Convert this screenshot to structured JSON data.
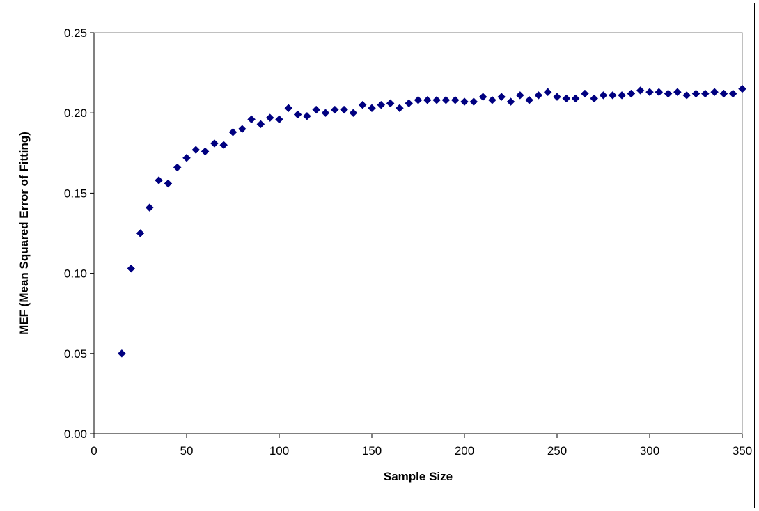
{
  "chart_data": {
    "type": "scatter",
    "title": "",
    "xlabel": "Sample Size",
    "ylabel": "MEF (Mean Squared Error of Fitting)",
    "xlim": [
      0,
      350
    ],
    "ylim": [
      0,
      0.25
    ],
    "x_ticks": [
      "0",
      "50",
      "100",
      "150",
      "200",
      "250",
      "300",
      "350"
    ],
    "y_ticks": [
      "0.00",
      "0.05",
      "0.10",
      "0.15",
      "0.20",
      "0.25"
    ],
    "grid": false,
    "legend": "none",
    "marker": "diamond",
    "marker_color": "#000080",
    "series": [
      {
        "x": [
          15,
          20,
          25,
          30,
          35,
          40,
          45,
          50,
          55,
          60,
          65,
          70,
          75,
          80,
          85,
          90,
          95,
          100,
          105,
          110,
          115,
          120,
          125,
          130,
          135,
          140,
          145,
          150,
          155,
          160,
          165,
          170,
          175,
          180,
          185,
          190,
          195,
          200,
          205,
          210,
          215,
          220,
          225,
          230,
          235,
          240,
          245,
          250,
          255,
          260,
          265,
          270,
          275,
          280,
          285,
          290,
          295,
          300,
          305,
          310,
          315,
          320,
          325,
          330,
          335,
          340,
          345,
          350
        ],
        "y": [
          0.05,
          0.103,
          0.125,
          0.141,
          0.158,
          0.156,
          0.166,
          0.172,
          0.177,
          0.176,
          0.181,
          0.18,
          0.188,
          0.19,
          0.196,
          0.193,
          0.197,
          0.196,
          0.203,
          0.199,
          0.198,
          0.202,
          0.2,
          0.202,
          0.202,
          0.2,
          0.205,
          0.203,
          0.205,
          0.206,
          0.203,
          0.206,
          0.208,
          0.208,
          0.208,
          0.208,
          0.208,
          0.207,
          0.207,
          0.21,
          0.208,
          0.21,
          0.207,
          0.211,
          0.208,
          0.211,
          0.213,
          0.21,
          0.209,
          0.209,
          0.212,
          0.209,
          0.211,
          0.211,
          0.211,
          0.212,
          0.214,
          0.213,
          0.213,
          0.212,
          0.213,
          0.211,
          0.212,
          0.212,
          0.213,
          0.212,
          0.212,
          0.215
        ]
      }
    ]
  }
}
